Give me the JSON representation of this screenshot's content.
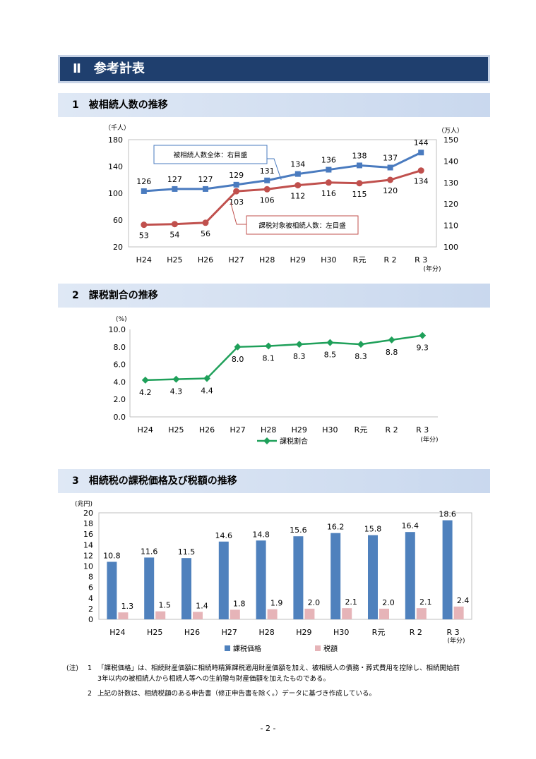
{
  "banner": {
    "title": "Ⅱ　参考計表"
  },
  "section1": {
    "title": "1　被相続人数の推移"
  },
  "section2": {
    "title": "2　課税割合の推移"
  },
  "section3": {
    "title": "3　相続税の課税価格及び税額の推移"
  },
  "chart1": {
    "type": "line",
    "categories": [
      "H24",
      "H25",
      "H26",
      "H27",
      "H28",
      "H29",
      "H30",
      "R元",
      "R 2",
      "R 3"
    ],
    "left_unit": "（千人）",
    "right_unit": "（万人）",
    "x_unit": "(年分)",
    "left_ticks": [
      "20",
      "60",
      "100",
      "140",
      "180"
    ],
    "right_ticks": [
      "100",
      "110",
      "120",
      "130",
      "140",
      "150"
    ],
    "left_range": [
      20,
      180
    ],
    "right_range": [
      100,
      150
    ],
    "series": [
      {
        "name": "被相続人数全体：右目盛",
        "axis": "right",
        "color": "#4a7bbf",
        "values": [
          126,
          127,
          127,
          129,
          131,
          134,
          136,
          138,
          137,
          144
        ],
        "labels": [
          "126",
          "127",
          "127",
          "129",
          "131",
          "134",
          "136",
          "138",
          "137",
          "144"
        ]
      },
      {
        "name": "課税対象被相続人数：左目盛",
        "axis": "left",
        "color": "#c0504d",
        "values": [
          53,
          54,
          56,
          103,
          106,
          112,
          116,
          115,
          120,
          134
        ],
        "labels": [
          "53",
          "54",
          "56",
          "103",
          "106",
          "112",
          "116",
          "115",
          "120",
          "134"
        ]
      }
    ]
  },
  "chart2": {
    "type": "line",
    "categories": [
      "H24",
      "H25",
      "H26",
      "H27",
      "H28",
      "H29",
      "H30",
      "R元",
      "R 2",
      "R 3"
    ],
    "y_unit": "(%)",
    "x_unit": "(年分)",
    "y_ticks": [
      "0.0",
      "2.0",
      "4.0",
      "6.0",
      "8.0",
      "10.0"
    ],
    "y_range": [
      0,
      10
    ],
    "series": [
      {
        "name": "課税割合",
        "color": "#1fa05a",
        "values": [
          4.2,
          4.3,
          4.4,
          8.0,
          8.1,
          8.3,
          8.5,
          8.3,
          8.8,
          9.3
        ],
        "labels": [
          "4.2",
          "4.3",
          "4.4",
          "8.0",
          "8.1",
          "8.3",
          "8.5",
          "8.3",
          "8.8",
          "9.3"
        ]
      }
    ]
  },
  "chart3": {
    "type": "bar",
    "categories": [
      "H24",
      "H25",
      "H26",
      "H27",
      "H28",
      "H29",
      "H30",
      "R元",
      "R 2",
      "R 3"
    ],
    "y_unit": "(兆円)",
    "x_unit": "(年分)",
    "y_ticks": [
      "0",
      "2",
      "4",
      "6",
      "8",
      "10",
      "12",
      "14",
      "16",
      "18",
      "20"
    ],
    "y_range": [
      0,
      20
    ],
    "series": [
      {
        "name": "課税価格",
        "color": "#4f81bd",
        "values": [
          10.8,
          11.6,
          11.5,
          14.6,
          14.8,
          15.6,
          16.2,
          15.8,
          16.4,
          18.6
        ],
        "labels": [
          "10.8",
          "11.6",
          "11.5",
          "14.6",
          "14.8",
          "15.6",
          "16.2",
          "15.8",
          "16.4",
          "18.6"
        ]
      },
      {
        "name": "税額",
        "color": "#e6b4b8",
        "values": [
          1.3,
          1.5,
          1.4,
          1.8,
          1.9,
          2.0,
          2.1,
          2.0,
          2.1,
          2.4
        ],
        "labels": [
          "1.3",
          "1.5",
          "1.4",
          "1.8",
          "1.9",
          "2.0",
          "2.1",
          "2.0",
          "2.1",
          "2.4"
        ]
      }
    ]
  },
  "notes": {
    "prefix": "(注)",
    "items": [
      {
        "num": "1",
        "lines": [
          "「課税価格」は、相続財産価額に相続時精算課税適用財産価額を加え、被相続人の債務・葬式費用を控除し、相続開始前",
          "3年以内の被相続人から相続人等への生前贈与財産価額を加えたものである。"
        ]
      },
      {
        "num": "2",
        "lines": [
          "上記の計数は、相続税額のある申告書（修正申告書を除く。）データに基づき作成している。"
        ]
      }
    ]
  },
  "page_number": "- 2 -"
}
